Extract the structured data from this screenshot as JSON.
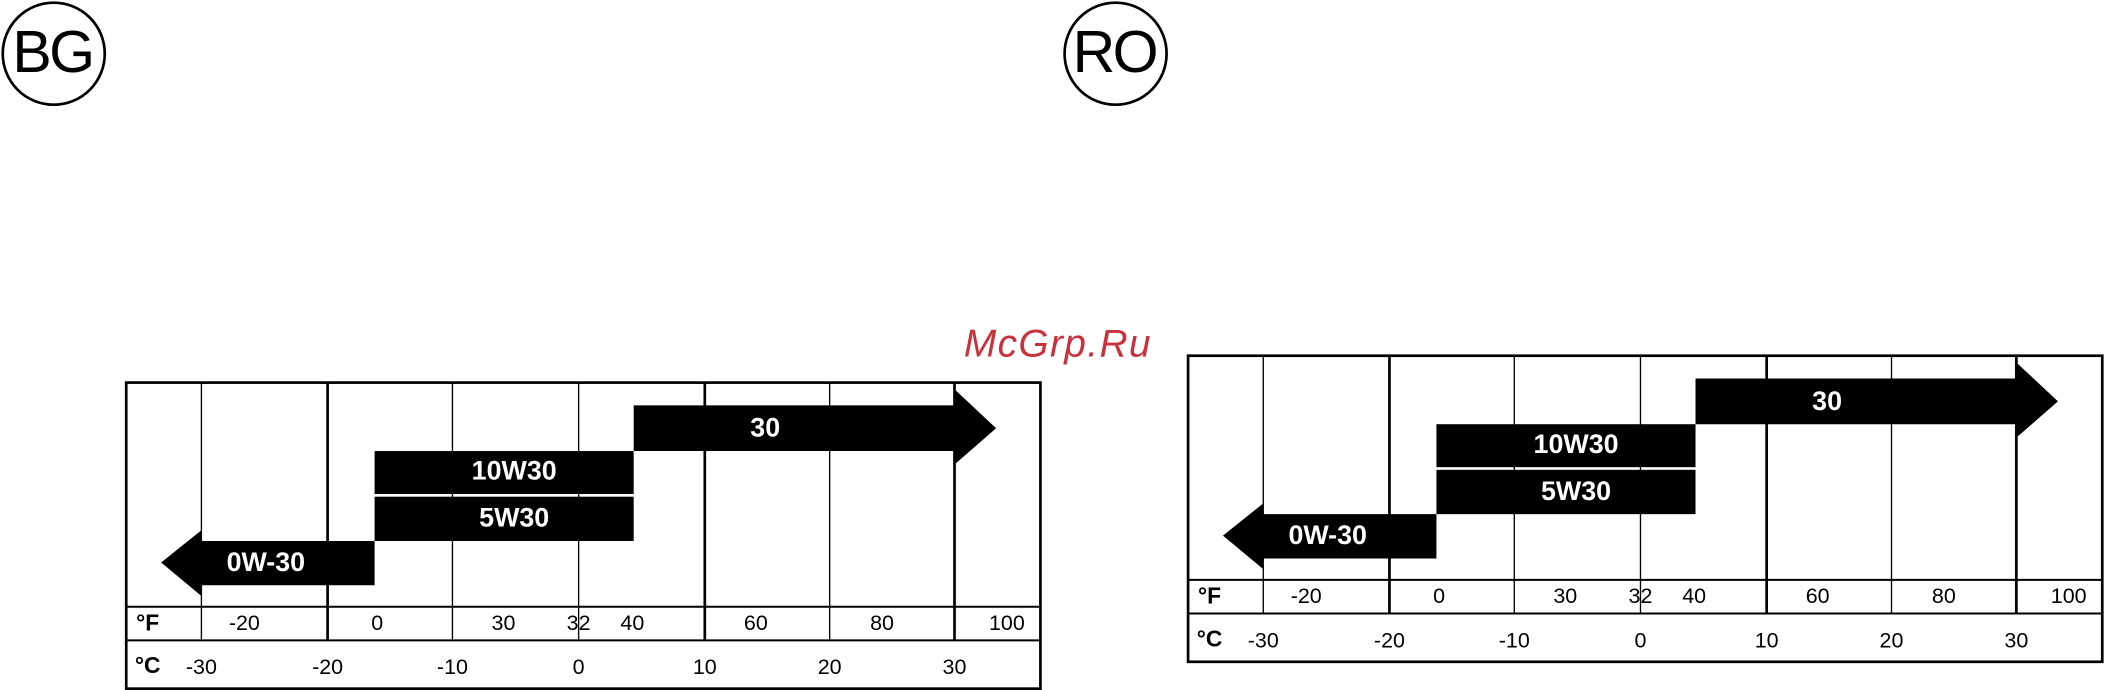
{
  "watermark": "McGrp.Ru",
  "panels": [
    {
      "badge": "BG",
      "fahrenheit_unit": "°F",
      "celsius_unit": "°C",
      "fahrenheit_ticks": [
        -20,
        0,
        30,
        32,
        40,
        60,
        80,
        100
      ],
      "celsius_ticks": [
        -30,
        -20,
        -10,
        0,
        10,
        20,
        30
      ],
      "grades": [
        "0W-30",
        "5W30",
        "10W30",
        "30"
      ]
    },
    {
      "badge": "RO",
      "fahrenheit_unit": "°F",
      "celsius_unit": "°C",
      "fahrenheit_ticks": [
        -20,
        0,
        30,
        32,
        40,
        60,
        80,
        100
      ],
      "celsius_ticks": [
        -30,
        -20,
        -10,
        0,
        10,
        20,
        30
      ],
      "grades": [
        "0W-30",
        "5W30",
        "10W30",
        "30"
      ]
    }
  ]
}
